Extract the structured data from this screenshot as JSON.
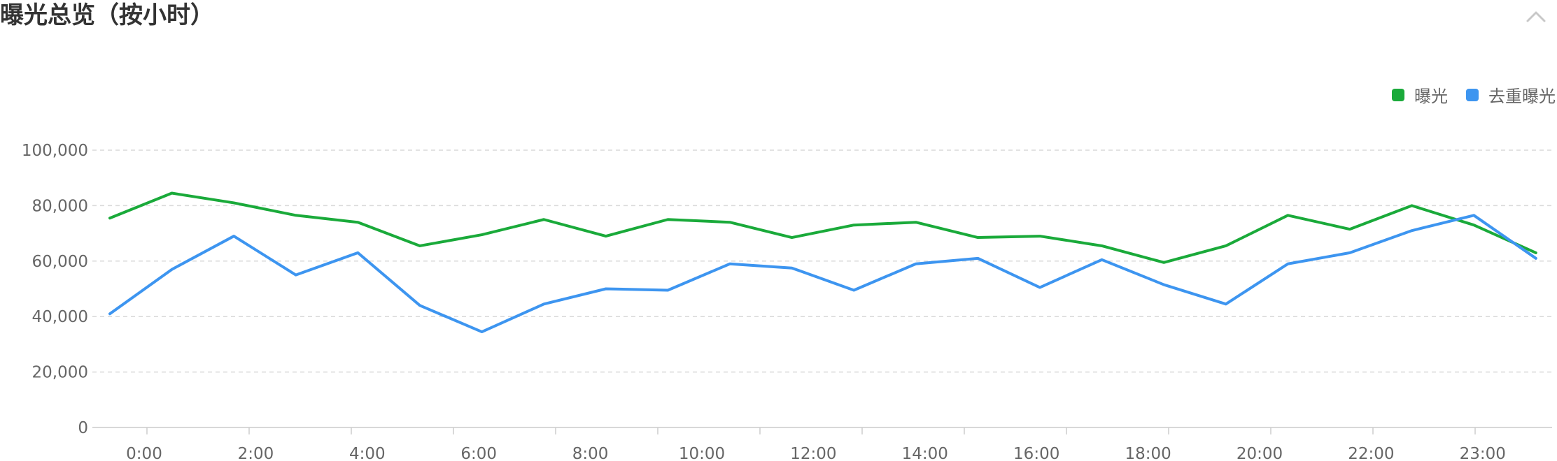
{
  "title": "曝光总览（按小时）",
  "icons": {
    "collapse": "chevron-up-icon"
  },
  "colors": {
    "series_1": "#1aaa3a",
    "series_2": "#3d95f0",
    "grid": "#d9d9d9",
    "axis": "#cccccc",
    "text": "#666666"
  },
  "chart_data": {
    "type": "line",
    "title": "",
    "xlabel": "",
    "ylabel": "",
    "ylim": [
      0,
      100000
    ],
    "yticks": [
      "100,000",
      "80,000",
      "60,000",
      "40,000",
      "20,000",
      "0"
    ],
    "ytick_values": [
      100000,
      80000,
      60000,
      40000,
      20000,
      0
    ],
    "xticks": [
      "0:00",
      "2:00",
      "4:00",
      "6:00",
      "8:00",
      "10:00",
      "12:00",
      "14:00",
      "16:00",
      "18:00",
      "20:00",
      "22:00",
      "23:00"
    ],
    "x": [
      0,
      1,
      2,
      3,
      4,
      5,
      6,
      7,
      8,
      9,
      10,
      11,
      12,
      13,
      14,
      15,
      16,
      17,
      18,
      19,
      20,
      21,
      22,
      23
    ],
    "grid": true,
    "legend_position": "top-right",
    "series": [
      {
        "name": "曝光",
        "color": "#1aaa3a",
        "values": [
          75500,
          84500,
          81000,
          76500,
          74000,
          65500,
          69500,
          75000,
          69000,
          75000,
          74000,
          68500,
          73000,
          74000,
          68500,
          69000,
          65500,
          59500,
          65500,
          76500,
          71500,
          80000,
          73000,
          63000
        ]
      },
      {
        "name": "去重曝光",
        "color": "#3d95f0",
        "values": [
          41000,
          57000,
          69000,
          55000,
          63000,
          44000,
          34500,
          44500,
          50000,
          49500,
          59000,
          57500,
          49500,
          59000,
          61000,
          50500,
          60500,
          51500,
          44500,
          59000,
          63000,
          71000,
          76500,
          61000
        ]
      }
    ]
  }
}
